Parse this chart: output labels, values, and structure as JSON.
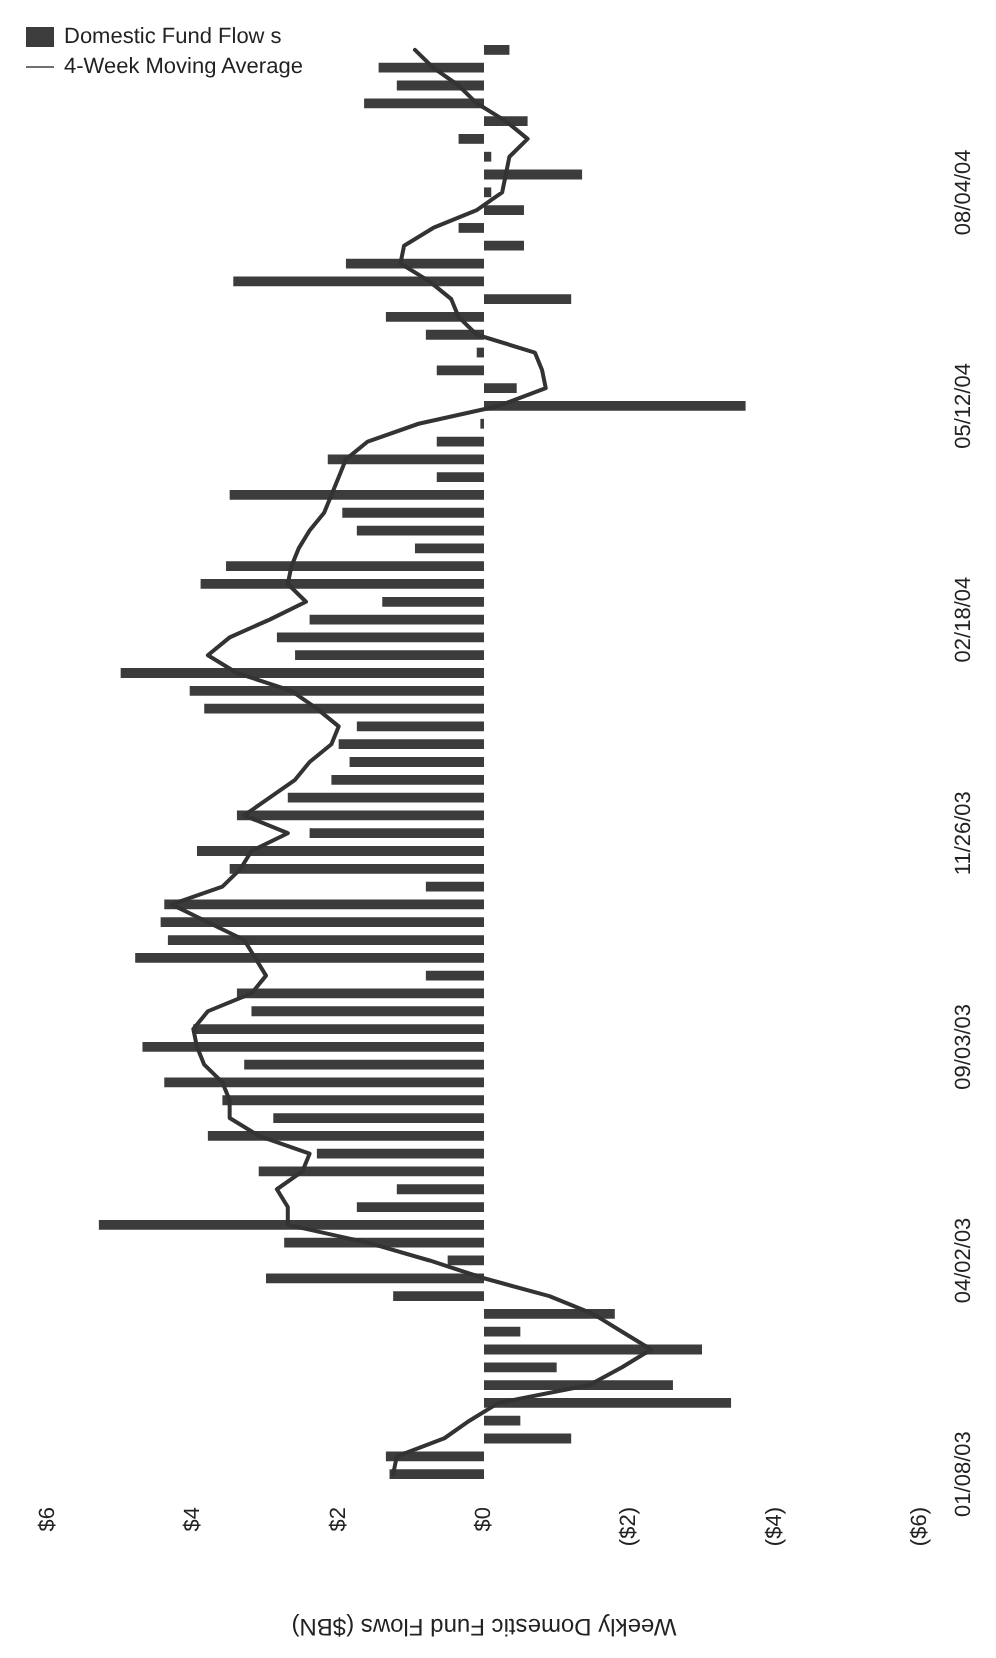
{
  "chart_data": {
    "type": "bar",
    "orientation": "horizontal",
    "xlabel": "Weekly Domestic Fund Flows ($BN)",
    "categories": [
      null,
      null,
      null,
      null,
      null,
      null,
      null,
      null,
      "08/04/04",
      null,
      null,
      null,
      null,
      null,
      null,
      null,
      null,
      null,
      null,
      null,
      "05/12/04",
      null,
      null,
      null,
      null,
      null,
      null,
      null,
      null,
      null,
      null,
      null,
      "02/18/04",
      null,
      null,
      null,
      null,
      null,
      null,
      null,
      null,
      null,
      null,
      null,
      "11/26/03",
      null,
      null,
      null,
      null,
      null,
      null,
      null,
      null,
      null,
      null,
      null,
      "09/03/03",
      null,
      null,
      null,
      null,
      null,
      null,
      null,
      null,
      null,
      null,
      null,
      "04/02/03",
      null,
      null,
      null,
      null,
      null,
      null,
      null,
      null,
      null,
      null,
      null,
      "01/08/03"
    ],
    "series": [
      {
        "name": "Domestic Fund Flow s",
        "color": "#3c3c3c",
        "values": [
          -0.35,
          1.45,
          1.2,
          1.65,
          -0.6,
          0.35,
          -0.1,
          -1.35,
          -0.1,
          -0.55,
          0.35,
          -0.55,
          1.9,
          3.45,
          -1.2,
          1.35,
          0.8,
          0.1,
          0.65,
          -0.45,
          -3.6,
          0.05,
          0.65,
          2.15,
          0.65,
          3.5,
          1.95,
          1.75,
          0.95,
          3.55,
          3.9,
          1.4,
          2.4,
          2.85,
          2.6,
          5.0,
          4.05,
          3.85,
          1.75,
          2.0,
          1.85,
          2.1,
          2.7,
          3.4,
          2.4,
          3.95,
          3.5,
          0.8,
          4.4,
          4.45,
          4.35,
          4.8,
          0.8,
          3.4,
          3.2,
          4.0,
          4.7,
          3.3,
          4.4,
          3.6,
          2.9,
          3.8,
          2.3,
          3.1,
          1.2,
          1.75,
          5.3,
          2.75,
          0.5,
          3.0,
          1.25,
          -1.8,
          -0.5,
          -3.0,
          -1.0,
          -2.6,
          -3.4,
          -0.5,
          -1.2,
          1.35,
          1.3
        ]
      },
      {
        "name": "4-Week Moving Average",
        "type": "line",
        "color": "#333333",
        "values": [
          0.95,
          0.7,
          0.35,
          0.1,
          -0.3,
          -0.6,
          -0.35,
          -0.3,
          -0.25,
          0.1,
          0.7,
          1.1,
          1.15,
          0.75,
          0.45,
          0.35,
          0.1,
          -0.7,
          -0.8,
          -0.85,
          -0.2,
          0.9,
          1.6,
          1.9,
          2.0,
          2.1,
          2.2,
          2.4,
          2.55,
          2.65,
          2.7,
          2.45,
          2.95,
          3.5,
          3.8,
          3.4,
          2.65,
          2.3,
          2.0,
          2.1,
          2.4,
          2.6,
          2.95,
          3.3,
          2.7,
          3.2,
          3.35,
          3.6,
          4.3,
          3.8,
          3.3,
          3.15,
          3.0,
          3.2,
          3.8,
          4.0,
          3.95,
          3.85,
          3.6,
          3.5,
          3.5,
          3.1,
          2.4,
          2.5,
          2.85,
          2.7,
          2.7,
          1.6,
          0.75,
          0,
          -0.9,
          -1.5,
          -1.9,
          -2.3,
          -1.9,
          -1.45,
          -0.2,
          0.2,
          0.55,
          1.2,
          1.25
        ]
      }
    ],
    "xlim": [
      6,
      -6
    ],
    "xticks": [
      {
        "value": 6,
        "label": "$6"
      },
      {
        "value": 4,
        "label": "$4"
      },
      {
        "value": 2,
        "label": "$2"
      },
      {
        "value": 0,
        "label": "$0"
      },
      {
        "value": -2,
        "label": "($2)"
      },
      {
        "value": -4,
        "label": "($4)"
      },
      {
        "value": -6,
        "label": "($6)"
      }
    ],
    "legend": "top left",
    "marker": "none"
  }
}
